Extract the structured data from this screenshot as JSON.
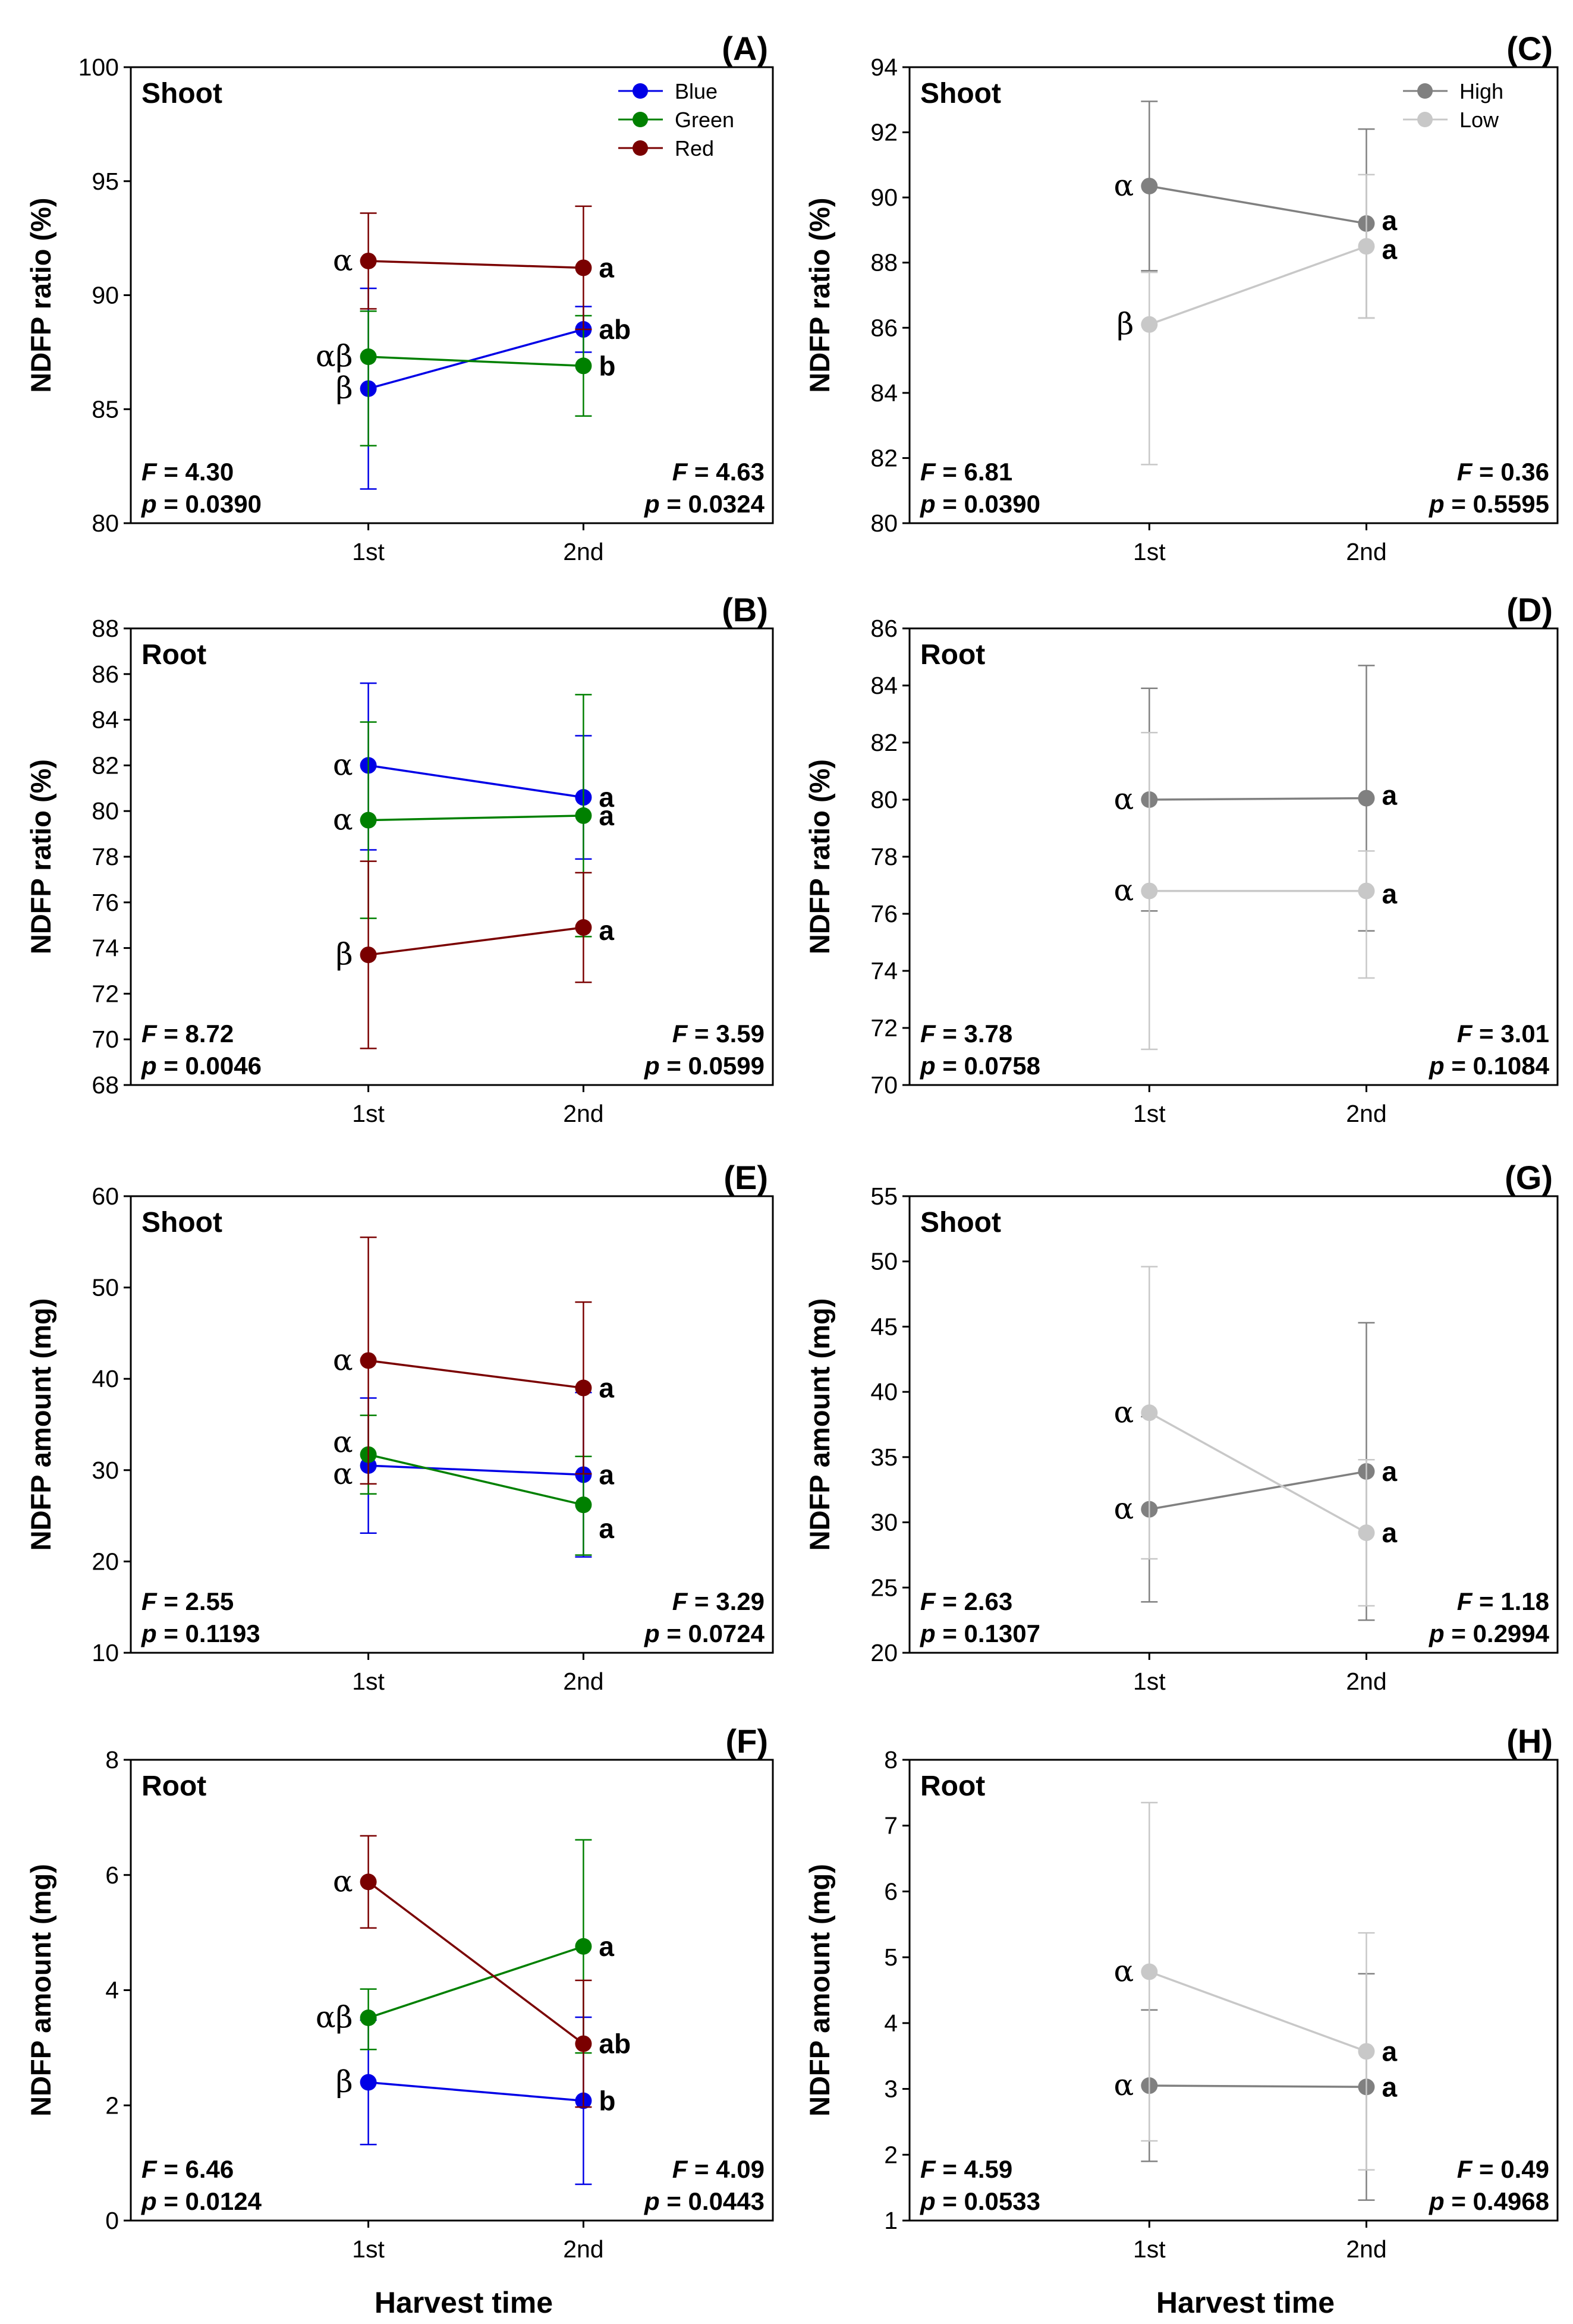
{
  "shared": {
    "x_title": "Harvest time",
    "x_categories": [
      "1st",
      "2nd"
    ],
    "stat_f_symbol": "F",
    "stat_p_symbol": "p",
    "stat_eq": " = "
  },
  "colors": {
    "Blue": "#0000e6",
    "Green": "#008000",
    "Red": "#7a0000",
    "High": "#808080",
    "Low": "#c8c8c8"
  },
  "legends": {
    "color": [
      "Blue",
      "Green",
      "Red"
    ],
    "intensity": [
      "High",
      "Low"
    ]
  },
  "chart_data": [
    {
      "id": "A",
      "panel_label": "(A)",
      "type": "line",
      "organ": "Shoot",
      "ylabel": "NDFP ratio (%)",
      "xlabel": "",
      "categories": [
        "1st",
        "2nd"
      ],
      "ylim": [
        80,
        100
      ],
      "yticks": [
        80,
        85,
        90,
        95,
        100
      ],
      "legend": "color",
      "series": [
        {
          "name": "Blue",
          "values": [
            85.9,
            88.5
          ],
          "err_low": [
            4.4,
            1.0
          ],
          "err_high": [
            4.4,
            1.0
          ],
          "letters": [
            "β",
            "ab"
          ]
        },
        {
          "name": "Green",
          "values": [
            87.3,
            86.9
          ],
          "err_low": [
            3.9,
            2.2
          ],
          "err_high": [
            2.0,
            2.2
          ],
          "letters": [
            "αβ",
            "b"
          ]
        },
        {
          "name": "Red",
          "values": [
            91.5,
            91.2
          ],
          "err_low": [
            2.1,
            2.7
          ],
          "err_high": [
            2.1,
            2.7
          ],
          "letters": [
            "α",
            "a"
          ]
        }
      ],
      "stats": [
        {
          "F": "4.30",
          "p": "0.0390"
        },
        {
          "F": "4.63",
          "p": "0.0324"
        }
      ]
    },
    {
      "id": "C",
      "panel_label": "(C)",
      "type": "line",
      "organ": "Shoot",
      "ylabel": "NDFP ratio (%)",
      "xlabel": "",
      "categories": [
        "1st",
        "2nd"
      ],
      "ylim": [
        80,
        94
      ],
      "yticks": [
        80,
        82,
        84,
        86,
        88,
        90,
        92,
        94
      ],
      "legend": "intensity",
      "series": [
        {
          "name": "High",
          "values": [
            90.35,
            89.2
          ],
          "err_low": [
            2.6,
            2.9
          ],
          "err_high": [
            2.6,
            2.9
          ],
          "letters": [
            "α",
            "a"
          ]
        },
        {
          "name": "Low",
          "values": [
            86.1,
            88.5
          ],
          "err_low": [
            4.3,
            2.2
          ],
          "err_high": [
            1.6,
            2.2
          ],
          "letters": [
            "β",
            "a"
          ]
        }
      ],
      "stats": [
        {
          "F": "6.81",
          "p": "0.0390"
        },
        {
          "F": "0.36",
          "p": "0.5595"
        }
      ]
    },
    {
      "id": "B",
      "panel_label": "(B)",
      "type": "line",
      "organ": "Root",
      "ylabel": "NDFP ratio (%)",
      "xlabel": "",
      "categories": [
        "1st",
        "2nd"
      ],
      "ylim": [
        68,
        88
      ],
      "yticks": [
        68,
        70,
        72,
        74,
        76,
        78,
        80,
        82,
        84,
        86,
        88
      ],
      "legend": "none",
      "series": [
        {
          "name": "Blue",
          "values": [
            82.0,
            80.6
          ],
          "err_low": [
            3.7,
            2.7
          ],
          "err_high": [
            3.6,
            2.7
          ],
          "letters": [
            "α",
            "a"
          ]
        },
        {
          "name": "Green",
          "values": [
            79.6,
            79.8
          ],
          "err_low": [
            4.3,
            5.3
          ],
          "err_high": [
            4.3,
            5.3
          ],
          "letters": [
            "α",
            "a"
          ]
        },
        {
          "name": "Red",
          "values": [
            73.7,
            74.9
          ],
          "err_low": [
            4.1,
            2.4
          ],
          "err_high": [
            4.1,
            2.4
          ],
          "letters": [
            "β",
            "a"
          ]
        }
      ],
      "stats": [
        {
          "F": "8.72",
          "p": "0.0046"
        },
        {
          "F": "3.59",
          "p": "0.0599"
        }
      ]
    },
    {
      "id": "D",
      "panel_label": "(D)",
      "type": "line",
      "organ": "Root",
      "ylabel": "NDFP ratio (%)",
      "xlabel": "",
      "categories": [
        "1st",
        "2nd"
      ],
      "ylim": [
        70,
        86
      ],
      "yticks": [
        70,
        72,
        74,
        76,
        78,
        80,
        82,
        84,
        86
      ],
      "legend": "none",
      "series": [
        {
          "name": "High",
          "values": [
            80.0,
            80.05
          ],
          "err_low": [
            3.9,
            4.65
          ],
          "err_high": [
            3.9,
            4.65
          ],
          "letters": [
            "α",
            "a"
          ]
        },
        {
          "name": "Low",
          "values": [
            76.8,
            76.8
          ],
          "err_low": [
            5.55,
            3.05
          ],
          "err_high": [
            5.55,
            1.4
          ],
          "letters": [
            "α",
            "a"
          ]
        }
      ],
      "stats": [
        {
          "F": "3.78",
          "p": "0.0758"
        },
        {
          "F": "3.01",
          "p": "0.1084"
        }
      ]
    },
    {
      "id": "E",
      "panel_label": "(E)",
      "type": "line",
      "organ": "Shoot",
      "ylabel": "NDFP amount (mg)",
      "xlabel": "",
      "categories": [
        "1st",
        "2nd"
      ],
      "ylim": [
        10,
        60
      ],
      "yticks": [
        10,
        20,
        30,
        40,
        50,
        60
      ],
      "legend": "none",
      "series": [
        {
          "name": "Blue",
          "values": [
            30.5,
            29.5
          ],
          "err_low": [
            7.4,
            9.0
          ],
          "err_high": [
            7.4,
            9.0
          ],
          "letters": [
            "α",
            "a"
          ]
        },
        {
          "name": "Green",
          "values": [
            31.7,
            26.2
          ],
          "err_low": [
            4.3,
            5.5
          ],
          "err_high": [
            4.3,
            5.3
          ],
          "letters": [
            "α",
            "a"
          ]
        },
        {
          "name": "Red",
          "values": [
            42.0,
            39.0
          ],
          "err_low": [
            13.5,
            9.4
          ],
          "err_high": [
            13.5,
            9.4
          ],
          "letters": [
            "α",
            "a"
          ]
        }
      ],
      "stats": [
        {
          "F": "2.55",
          "p": "0.1193"
        },
        {
          "F": "3.29",
          "p": "0.0724"
        }
      ]
    },
    {
      "id": "G",
      "panel_label": "(G)",
      "type": "line",
      "organ": "Shoot",
      "ylabel": "NDFP amount (mg)",
      "xlabel": "",
      "categories": [
        "1st",
        "2nd"
      ],
      "ylim": [
        20,
        55
      ],
      "yticks": [
        20,
        25,
        30,
        35,
        40,
        45,
        50,
        55
      ],
      "legend": "none",
      "series": [
        {
          "name": "High",
          "values": [
            31.0,
            33.9
          ],
          "err_low": [
            7.1,
            11.4
          ],
          "err_high": [
            7.1,
            11.4
          ],
          "letters": [
            "α",
            "a"
          ]
        },
        {
          "name": "Low",
          "values": [
            38.4,
            29.2
          ],
          "err_low": [
            11.2,
            5.6
          ],
          "err_high": [
            11.2,
            5.6
          ],
          "letters": [
            "α",
            "a"
          ]
        }
      ],
      "stats": [
        {
          "F": "2.63",
          "p": "0.1307"
        },
        {
          "F": "1.18",
          "p": "0.2994"
        }
      ]
    },
    {
      "id": "F",
      "panel_label": "(F)",
      "type": "line",
      "organ": "Root",
      "ylabel": "NDFP amount (mg)",
      "xlabel": "Harvest time",
      "categories": [
        "1st",
        "2nd"
      ],
      "ylim": [
        0,
        8
      ],
      "yticks": [
        0,
        2,
        4,
        6,
        8
      ],
      "legend": "none",
      "series": [
        {
          "name": "Blue",
          "values": [
            2.4,
            2.08
          ],
          "err_low": [
            1.08,
            1.45
          ],
          "err_high": [
            1.08,
            1.45
          ],
          "letters": [
            "β",
            "b"
          ]
        },
        {
          "name": "Green",
          "values": [
            3.52,
            4.76
          ],
          "err_low": [
            0.55,
            1.85
          ],
          "err_high": [
            0.5,
            1.85
          ],
          "letters": [
            "αβ",
            "a"
          ]
        },
        {
          "name": "Red",
          "values": [
            5.88,
            3.07
          ],
          "err_low": [
            0.8,
            1.1
          ],
          "err_high": [
            0.8,
            1.1
          ],
          "letters": [
            "α",
            "ab"
          ]
        }
      ],
      "stats": [
        {
          "F": "6.46",
          "p": "0.0124"
        },
        {
          "F": "4.09",
          "p": "0.0443"
        }
      ]
    },
    {
      "id": "H",
      "panel_label": "(H)",
      "type": "line",
      "organ": "Root",
      "ylabel": "NDFP amount (mg)",
      "xlabel": "Harvest time",
      "categories": [
        "1st",
        "2nd"
      ],
      "ylim": [
        1,
        8
      ],
      "yticks": [
        1,
        2,
        3,
        4,
        5,
        6,
        7,
        8
      ],
      "legend": "none",
      "series": [
        {
          "name": "High",
          "values": [
            3.05,
            3.03
          ],
          "err_low": [
            1.15,
            1.72
          ],
          "err_high": [
            1.15,
            1.72
          ],
          "letters": [
            "α",
            "a"
          ]
        },
        {
          "name": "Low",
          "values": [
            4.78,
            3.57
          ],
          "err_low": [
            2.57,
            1.8
          ],
          "err_high": [
            2.57,
            1.8
          ],
          "letters": [
            "α",
            "a"
          ]
        }
      ],
      "stats": [
        {
          "F": "4.59",
          "p": "0.0533"
        },
        {
          "F": "0.49",
          "p": "0.4968"
        }
      ]
    }
  ]
}
